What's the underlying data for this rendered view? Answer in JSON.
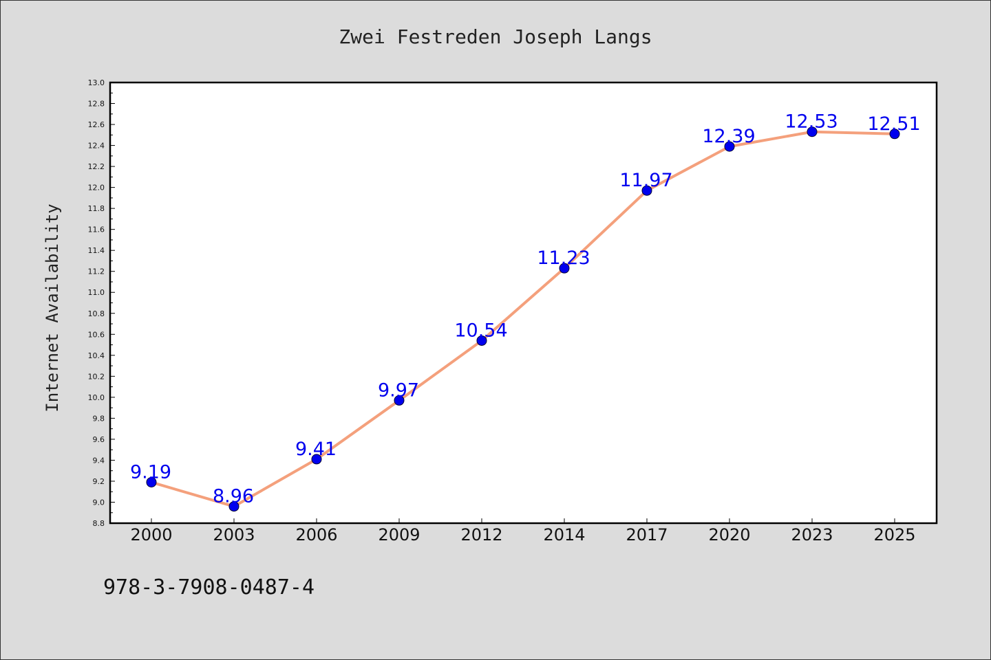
{
  "chart_data": {
    "type": "line",
    "title": "Zwei Festreden Joseph Langs",
    "xlabel": "",
    "ylabel": "Internet Availability",
    "categories": [
      "2000",
      "2003",
      "2006",
      "2009",
      "2012",
      "2014",
      "2017",
      "2020",
      "2023",
      "2025"
    ],
    "series": [
      {
        "values": [
          9.19,
          8.96,
          9.41,
          9.97,
          10.54,
          11.23,
          11.97,
          12.39,
          12.53,
          12.51
        ]
      }
    ],
    "data_labels": [
      "9.19",
      "8.96",
      "9.41",
      "9.97",
      "10.54",
      "11.23",
      "11.97",
      "12.39",
      "12.53",
      "12.51"
    ],
    "ylim": [
      8.8,
      13.0
    ],
    "yticks": [
      "8.8",
      "9.0",
      "9.2",
      "9.4",
      "9.6",
      "9.8",
      "10.0",
      "10.2",
      "10.4",
      "10.6",
      "10.8",
      "11.0",
      "11.2",
      "11.4",
      "11.6",
      "11.8",
      "12.0",
      "12.2",
      "12.4",
      "12.6",
      "12.8",
      "13.0"
    ],
    "grid": false,
    "legend": "none",
    "colors": {
      "line": "#f4a07c",
      "marker": "#0000ee",
      "data_label": "#0000ee"
    }
  },
  "footnote": "978-3-7908-0487-4"
}
